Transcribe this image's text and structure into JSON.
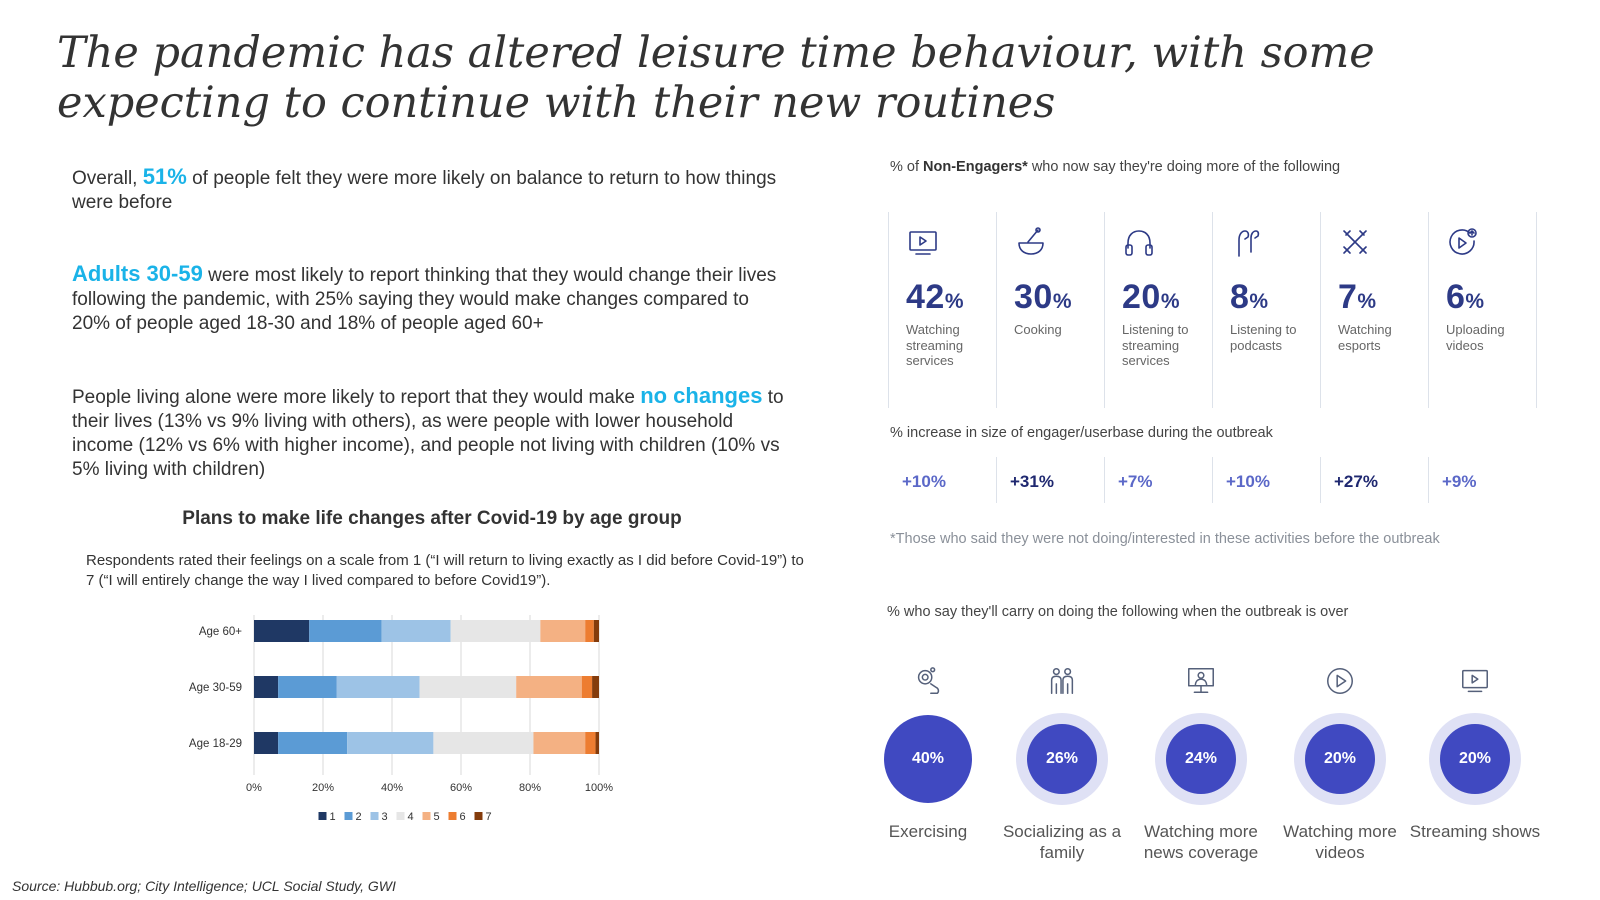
{
  "title": "The pandemic has altered leisure time behaviour, with some expecting to continue with their new routines",
  "para1": {
    "pre": "Overall, ",
    "hl": "51%",
    "post": " of people felt they were more likely on balance to return to how things were before"
  },
  "para2": {
    "hl": "Adults 30-59",
    "post": " were most likely to report thinking that they would change their lives following the pandemic, with 25% saying they would make changes compared to 20% of people aged 18-30 and 18% of people aged 60+"
  },
  "para3": {
    "pre": "People living alone were more likely to report that they would make ",
    "hl": "no changes",
    "post": " to their lives (13% vs 9% living with others), as were people with lower household income (12% vs 6% with higher income), and people not living with children (10% vs 5% living with children)"
  },
  "chart_title": "Plans to make life changes after Covid-19 by age group",
  "chart_subtitle": "Respondents rated their feelings on a scale from 1 (“I will return to living exactly as I did before Covid-19”) to 7 (“I will entirely change the way I lived compared to before Covid19”).",
  "chart_data": {
    "type": "bar",
    "orientation": "horizontal",
    "stacked": true,
    "categories": [
      "Age 60+",
      "Age 30-59",
      "Age 18-29"
    ],
    "series": [
      {
        "name": "1",
        "values": [
          16,
          7,
          7
        ]
      },
      {
        "name": "2",
        "values": [
          21,
          17,
          20
        ]
      },
      {
        "name": "3",
        "values": [
          20,
          24,
          25
        ]
      },
      {
        "name": "4",
        "values": [
          26,
          28,
          29
        ]
      },
      {
        "name": "5",
        "values": [
          13,
          19,
          15
        ]
      },
      {
        "name": "6",
        "values": [
          2.5,
          3,
          3
        ]
      },
      {
        "name": "7",
        "values": [
          1.5,
          2,
          1
        ]
      }
    ],
    "xlim": [
      0,
      100
    ],
    "xticks": [
      "0%",
      "20%",
      "40%",
      "60%",
      "80%",
      "100%"
    ],
    "legend_position": "bottom",
    "colors": [
      "#1f3864",
      "#5b9bd5",
      "#9dc3e6",
      "#e6e6e6",
      "#f4b183",
      "#ed7d31",
      "#843c0c"
    ]
  },
  "non_engagers": {
    "title_pre": "% of ",
    "title_bold": "Non-Engagers*",
    "title_post": " who now say they're doing more of the following",
    "items": [
      {
        "icon": "tv-icon",
        "value": "42",
        "unit": "%",
        "label": "Watching streaming services"
      },
      {
        "icon": "cooking-bowl-icon",
        "value": "30",
        "unit": "%",
        "label": "Cooking"
      },
      {
        "icon": "headphones-icon",
        "value": "20",
        "unit": "%",
        "label": "Listening to streaming services"
      },
      {
        "icon": "earphones-icon",
        "value": "8",
        "unit": "%",
        "label": "Listening to podcasts"
      },
      {
        "icon": "crossed-swords-icon",
        "value": "7",
        "unit": "%",
        "label": "Watching esports"
      },
      {
        "icon": "upload-video-icon",
        "value": "6",
        "unit": "%",
        "label": "Uploading videos"
      }
    ]
  },
  "increase": {
    "title": "% increase in size of engager/userbase during the outbreak",
    "values": [
      "+10%",
      "+31%",
      "+7%",
      "+10%",
      "+27%",
      "+9%"
    ]
  },
  "footnote": "*Those who said they were not doing/interested in these activities before the outbreak",
  "carry_on": {
    "title": "% who say they'll carry on doing the following when the outbreak is over",
    "items": [
      {
        "icon": "exercise-icon",
        "value": "40%",
        "label": "Exercising"
      },
      {
        "icon": "family-icon",
        "value": "26%",
        "label": "Socializing as a family"
      },
      {
        "icon": "news-presenter-icon",
        "value": "24%",
        "label": "Watching more news coverage"
      },
      {
        "icon": "play-icon",
        "value": "20%",
        "label": "Watching more videos"
      },
      {
        "icon": "tv-icon",
        "value": "20%",
        "label": "Streaming shows"
      }
    ],
    "values_numeric": [
      40,
      26,
      24,
      20,
      20
    ]
  },
  "source": "Source: Hubbub.org; City Intelligence; UCL Social Study, GWI"
}
